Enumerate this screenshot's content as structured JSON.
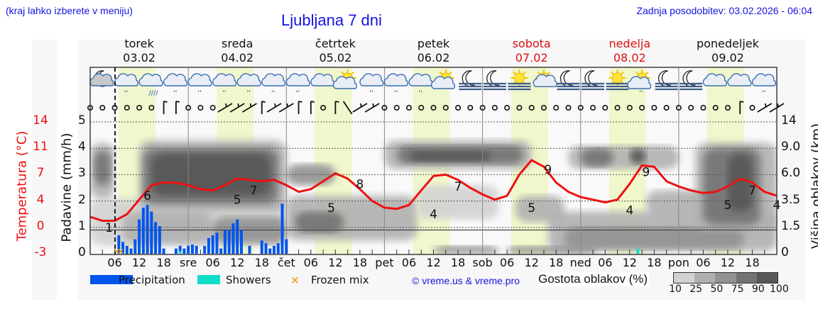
{
  "header": {
    "location_hint": "(kraj lahko izberete v meniju)",
    "title": "Ljubljana 7 dni",
    "last_update": "Zadnja posodobitev: 03.02.2026 - 06:04"
  },
  "days": [
    {
      "name": "torek",
      "date": "03.02",
      "weekend": false
    },
    {
      "name": "sreda",
      "date": "04.02",
      "weekend": false
    },
    {
      "name": "četrtek",
      "date": "05.02",
      "weekend": false
    },
    {
      "name": "petek",
      "date": "06.02",
      "weekend": false
    },
    {
      "name": "sobota",
      "date": "07.02",
      "weekend": true
    },
    {
      "name": "nedelja",
      "date": "08.02",
      "weekend": true
    },
    {
      "name": "ponedeljek",
      "date": "09.02",
      "weekend": false
    }
  ],
  "axes": {
    "left_temp_label": "Temperatura (°C)",
    "left_temp_ticks": [
      "14",
      "11",
      "7",
      "4",
      "0",
      "-3"
    ],
    "left_precip_label": "Padavine (mm/h)",
    "left_precip_ticks": [
      "5",
      "4",
      "3",
      "2",
      "1",
      "0"
    ],
    "right_label": "Višina oblakov (km)",
    "right_ticks": [
      "14",
      "9.0",
      "6.0",
      "3.5",
      "1.5",
      "0"
    ],
    "x_ticks": [
      "06",
      "12",
      "18",
      "sre",
      "06",
      "12",
      "18",
      "čet",
      "06",
      "12",
      "18",
      "pet",
      "06",
      "12",
      "18",
      "sob",
      "06",
      "12",
      "18",
      "ned",
      "06",
      "12",
      "18",
      "pon",
      "06",
      "12",
      "18"
    ]
  },
  "legend": {
    "precipitation": "Precipitation",
    "showers": "Showers",
    "frozen_mix": "Frozen mix",
    "copyright": "© vreme.us & vreme.pro",
    "cloud_density_label": "Gostota oblakov (%)",
    "cloud_density_ticks": [
      "10",
      "25",
      "50",
      "75",
      "90",
      "100"
    ]
  },
  "colors": {
    "title_blue": "#1414e0",
    "temperature_red": "#ee1111",
    "precipitation_blue": "#0055ee",
    "showers_cyan": "#11ddc8",
    "frozen_orange": "#f0a020",
    "daytime_band": "#f1f7cc",
    "cloud_scale": [
      "#d2d2d2",
      "#b0b0b0",
      "#929292",
      "#737373",
      "#575757"
    ]
  },
  "icons": [
    "moon-cloud-icon",
    "rain-snow-icon",
    "heavy-rain-icon",
    "rain-cloud-icon",
    "rain-cloud-icon",
    "rain-cloud-icon",
    "rain-cloud-icon",
    "rain-cloud-icon",
    "rain-cloud-icon",
    "cloud-icon",
    "sun-cloud-icon",
    "rain-cloud-icon",
    "rain-cloud-icon",
    "rain-cloud-icon",
    "sun-cloud-icon",
    "moon-fog-icon",
    "moon-fog-icon",
    "sun-fog-icon",
    "sun-small-cloud-icon",
    "moon-fog-icon",
    "moon-fog-icon",
    "sun-fog-icon",
    "sun-rain-cloud-icon",
    "moon-fog-icon",
    "moon-fog-icon",
    "cloud-icon",
    "cloud-icon",
    "rain-cloud-icon"
  ],
  "chart_data": {
    "type": "line",
    "title": "Ljubljana 7 dni",
    "xlabel": "",
    "ylabel": "Padavine (mm/h)",
    "ylim": [
      0,
      5
    ],
    "grid": true,
    "x_hours": [
      0,
      6,
      12,
      18,
      24,
      30,
      36,
      42,
      48,
      54,
      60,
      66,
      72,
      78,
      84,
      90,
      96,
      102,
      108,
      114,
      120,
      126,
      132,
      138,
      144,
      150,
      156,
      162,
      168
    ],
    "series": [
      {
        "name": "Temperatura (°C)",
        "axis": "left_temp",
        "labels": [
          {
            "hour": 6,
            "value": 1
          },
          {
            "hour": 14,
            "value": 6
          },
          {
            "hour": 36,
            "value": 5
          },
          {
            "hour": 40,
            "value": 7
          },
          {
            "hour": 59,
            "value": 5
          },
          {
            "hour": 66,
            "value": 8
          },
          {
            "hour": 84,
            "value": 4
          },
          {
            "hour": 90,
            "value": 7
          },
          {
            "hour": 108,
            "value": 5
          },
          {
            "hour": 112,
            "value": 9
          },
          {
            "hour": 132,
            "value": 4
          },
          {
            "hour": 136,
            "value": 9
          },
          {
            "hour": 156,
            "value": 5
          },
          {
            "hour": 162,
            "value": 7
          },
          {
            "hour": 168,
            "value": 4
          }
        ],
        "points": [
          [
            0,
            1.4
          ],
          [
            3,
            1.25
          ],
          [
            6,
            1.25
          ],
          [
            9,
            1.5
          ],
          [
            12,
            2.05
          ],
          [
            15,
            2.6
          ],
          [
            18,
            2.7
          ],
          [
            21,
            2.7
          ],
          [
            24,
            2.6
          ],
          [
            27,
            2.45
          ],
          [
            30,
            2.4
          ],
          [
            33,
            2.6
          ],
          [
            36,
            2.85
          ],
          [
            39,
            2.8
          ],
          [
            42,
            2.75
          ],
          [
            45,
            2.8
          ],
          [
            48,
            2.6
          ],
          [
            51,
            2.35
          ],
          [
            54,
            2.45
          ],
          [
            57,
            2.75
          ],
          [
            60,
            3.05
          ],
          [
            63,
            2.85
          ],
          [
            66,
            2.45
          ],
          [
            69,
            2.0
          ],
          [
            72,
            1.75
          ],
          [
            75,
            1.7
          ],
          [
            78,
            1.85
          ],
          [
            81,
            2.4
          ],
          [
            84,
            2.95
          ],
          [
            87,
            3.0
          ],
          [
            90,
            2.8
          ],
          [
            93,
            2.5
          ],
          [
            96,
            2.25
          ],
          [
            99,
            2.05
          ],
          [
            102,
            2.2
          ],
          [
            105,
            3.0
          ],
          [
            108,
            3.55
          ],
          [
            111,
            3.3
          ],
          [
            114,
            2.7
          ],
          [
            117,
            2.35
          ],
          [
            120,
            2.15
          ],
          [
            123,
            2.05
          ],
          [
            126,
            1.95
          ],
          [
            129,
            2.05
          ],
          [
            132,
            2.65
          ],
          [
            135,
            3.35
          ],
          [
            138,
            3.3
          ],
          [
            141,
            2.75
          ],
          [
            144,
            2.55
          ],
          [
            147,
            2.4
          ],
          [
            150,
            2.3
          ],
          [
            153,
            2.35
          ],
          [
            156,
            2.55
          ],
          [
            159,
            2.85
          ],
          [
            162,
            2.7
          ],
          [
            165,
            2.35
          ],
          [
            168,
            2.2
          ]
        ]
      },
      {
        "name": "Precipitation",
        "axis": "left_precip",
        "unit": "mm/h",
        "bars": [
          [
            7,
            0.7
          ],
          [
            8,
            0.45
          ],
          [
            9,
            0.3
          ],
          [
            10,
            0.2
          ],
          [
            11,
            0.55
          ],
          [
            12,
            1.3
          ],
          [
            13,
            1.75
          ],
          [
            14,
            1.85
          ],
          [
            15,
            1.6
          ],
          [
            16,
            1.2
          ],
          [
            17,
            1.05
          ],
          [
            18,
            0.2
          ],
          [
            21,
            0.2
          ],
          [
            22,
            0.3
          ],
          [
            23,
            0.2
          ],
          [
            24,
            0.3
          ],
          [
            25,
            0.35
          ],
          [
            26,
            0.3
          ],
          [
            28,
            0.3
          ],
          [
            29,
            0.6
          ],
          [
            30,
            0.7
          ],
          [
            31,
            0.8
          ],
          [
            32,
            0.2
          ],
          [
            33,
            0.9
          ],
          [
            34,
            0.9
          ],
          [
            35,
            1.15
          ],
          [
            36,
            1.3
          ],
          [
            37,
            0.9
          ],
          [
            39,
            0.3
          ],
          [
            42,
            0.5
          ],
          [
            43,
            0.4
          ],
          [
            44,
            0.2
          ],
          [
            45,
            0.3
          ],
          [
            46,
            0.4
          ],
          [
            47,
            1.9
          ],
          [
            48,
            0.55
          ]
        ]
      },
      {
        "name": "Showers",
        "axis": "left_precip",
        "unit": "mm/h",
        "bars": [
          [
            22,
            0.1
          ],
          [
            134,
            0.2
          ]
        ]
      },
      {
        "name": "Frozen mix",
        "markers": [
          [
            6.5,
            0.1
          ],
          [
            7.5,
            0.1
          ]
        ]
      }
    ],
    "legend_position": "bottom"
  }
}
